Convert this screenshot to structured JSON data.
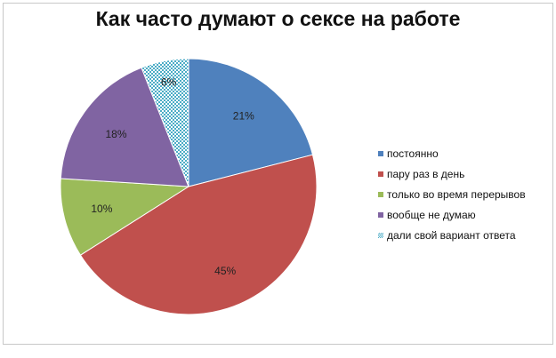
{
  "chart_data": {
    "type": "pie",
    "title": "Как часто думают о сексе на работе",
    "legend_position": "right",
    "slices": [
      {
        "label": "постоянно",
        "value": 21,
        "pct_label": "21%",
        "color": "#4f81bd",
        "pattern": "none"
      },
      {
        "label": "пару раз в день",
        "value": 45,
        "pct_label": "45%",
        "color": "#c0504d",
        "pattern": "none"
      },
      {
        "label": "только во время перерывов",
        "value": 10,
        "pct_label": "10%",
        "color": "#9bbb59",
        "pattern": "none"
      },
      {
        "label": "вообще не думаю",
        "value": 18,
        "pct_label": "18%",
        "color": "#8064a2",
        "pattern": "none"
      },
      {
        "label": "дали свой вариант ответа",
        "value": 6,
        "pct_label": "6%",
        "color": "#4bacc6",
        "pattern": "dotted"
      }
    ]
  }
}
